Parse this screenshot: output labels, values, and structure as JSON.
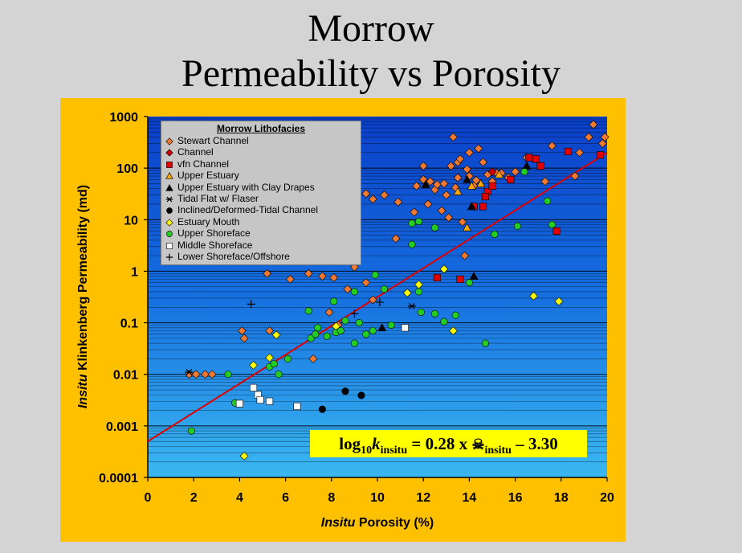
{
  "title_line1": "Morrow",
  "title_line2": "Permeability vs Porosity",
  "equation": {
    "log": "log",
    "log_sub": "10",
    "k": "k",
    "k_sub": "insitu",
    "mid": " = 0.28 x ",
    "symbol": "☠",
    "sym_sub": "insitu",
    "tail": " – 3.30"
  },
  "chart_data": {
    "type": "scatter",
    "xlabel_italic": "Insitu",
    "xlabel_rest": " Porosity (%)",
    "ylabel_italic": "Insitu",
    "ylabel_rest": " Klinkenberg Permeability (md)",
    "xlim": [
      0,
      20
    ],
    "ylim": [
      0.0001,
      1000
    ],
    "y_scale": "log",
    "x_ticks": [
      "0",
      "2",
      "4",
      "6",
      "8",
      "10",
      "12",
      "14",
      "16",
      "18",
      "20"
    ],
    "y_ticks": [
      "0.0001",
      "0.001",
      "0.01",
      "0.1",
      "1",
      "10",
      "100",
      "1000"
    ],
    "legend_title": "Morrow Lithofacies",
    "legend_position": "top-left",
    "trendline": {
      "slope": 0.28,
      "intercept": -3.3,
      "color": "#e00000"
    },
    "series": [
      {
        "name": "Stewart Channel",
        "marker": "diamond",
        "color": "#f07830",
        "points": [
          [
            1.8,
            0.01
          ],
          [
            2.1,
            0.01
          ],
          [
            2.5,
            0.01
          ],
          [
            2.8,
            0.01
          ],
          [
            4.1,
            0.07
          ],
          [
            4.2,
            0.05
          ],
          [
            5.3,
            0.07
          ],
          [
            5.2,
            0.9
          ],
          [
            6.2,
            0.7
          ],
          [
            7.0,
            0.9
          ],
          [
            7.2,
            0.02
          ],
          [
            7.6,
            0.8
          ],
          [
            7.9,
            0.16
          ],
          [
            8.1,
            0.75
          ],
          [
            8.3,
            0.09
          ],
          [
            8.7,
            0.45
          ],
          [
            9.0,
            1.2
          ],
          [
            9.5,
            0.6
          ],
          [
            9.8,
            0.28
          ],
          [
            9.5,
            32
          ],
          [
            9.8,
            25
          ],
          [
            10.3,
            30
          ],
          [
            10.8,
            4.3
          ],
          [
            10.9,
            22
          ],
          [
            11.6,
            14
          ],
          [
            11.7,
            45
          ],
          [
            12.0,
            60
          ],
          [
            12.0,
            110
          ],
          [
            12.2,
            20
          ],
          [
            12.3,
            55
          ],
          [
            12.5,
            38
          ],
          [
            12.6,
            48
          ],
          [
            12.8,
            15
          ],
          [
            12.9,
            50
          ],
          [
            13.0,
            30
          ],
          [
            13.1,
            11
          ],
          [
            13.2,
            110
          ],
          [
            13.3,
            400
          ],
          [
            13.4,
            42
          ],
          [
            13.5,
            65
          ],
          [
            13.5,
            130
          ],
          [
            13.6,
            150
          ],
          [
            13.7,
            9
          ],
          [
            13.8,
            2
          ],
          [
            13.9,
            95
          ],
          [
            14.0,
            200
          ],
          [
            14.0,
            70
          ],
          [
            14.2,
            45
          ],
          [
            14.3,
            58
          ],
          [
            14.4,
            240
          ],
          [
            14.6,
            130
          ],
          [
            14.8,
            75
          ],
          [
            15.0,
            55
          ],
          [
            15.2,
            80
          ],
          [
            15.4,
            80
          ],
          [
            15.7,
            65
          ],
          [
            16.0,
            85
          ],
          [
            16.5,
            160
          ],
          [
            17.3,
            55
          ],
          [
            17.6,
            270
          ],
          [
            18.6,
            70
          ],
          [
            18.8,
            200
          ],
          [
            19.2,
            400
          ],
          [
            19.4,
            700
          ],
          [
            19.8,
            300
          ],
          [
            19.9,
            400
          ]
        ]
      },
      {
        "name": "Channel",
        "marker": "diamond",
        "color": "#cc0000",
        "points": [
          [
            15.0,
            85
          ]
        ]
      },
      {
        "name": "vfn Channel",
        "marker": "square",
        "color": "#e00000",
        "points": [
          [
            12.6,
            0.75
          ],
          [
            13.6,
            0.7
          ],
          [
            14.2,
            18
          ],
          [
            14.6,
            18
          ],
          [
            14.8,
            35
          ],
          [
            14.7,
            28
          ],
          [
            15.0,
            45
          ],
          [
            15.8,
            60
          ],
          [
            16.6,
            160
          ],
          [
            16.9,
            150
          ],
          [
            17.1,
            110
          ],
          [
            17.8,
            6
          ],
          [
            18.3,
            210
          ],
          [
            19.7,
            180
          ]
        ]
      },
      {
        "name": "Upper Estuary",
        "marker": "triangle",
        "color": "#ffa500",
        "points": [
          [
            13.5,
            35
          ],
          [
            13.9,
            7
          ],
          [
            14.1,
            45
          ],
          [
            14.5,
            50
          ],
          [
            15.3,
            75
          ]
        ]
      },
      {
        "name": "Upper Estuary with Clay Drapes",
        "marker": "triangle",
        "color": "#000000",
        "points": [
          [
            10.2,
            0.08
          ],
          [
            12.1,
            48
          ],
          [
            13.9,
            60
          ],
          [
            14.1,
            18
          ],
          [
            14.2,
            0.8
          ],
          [
            16.5,
            110
          ]
        ]
      },
      {
        "name": "Tidal Flat w/ Flaser",
        "marker": "asterisk",
        "color": "#000000",
        "points": [
          [
            1.8,
            0.011
          ],
          [
            11.5,
            0.21
          ]
        ]
      },
      {
        "name": "Inclined/Deformed-Tidal Channel",
        "marker": "circle",
        "color": "#000000",
        "points": [
          [
            7.6,
            0.0021
          ],
          [
            8.6,
            0.0047
          ],
          [
            9.3,
            0.0039
          ]
        ]
      },
      {
        "name": "Estuary Mouth",
        "marker": "diamond",
        "color": "#ffff00",
        "points": [
          [
            4.2,
            0.00026
          ],
          [
            4.6,
            0.015
          ],
          [
            5.3,
            0.021
          ],
          [
            5.6,
            0.058
          ],
          [
            8.2,
            0.085
          ],
          [
            11.3,
            0.38
          ],
          [
            11.8,
            0.55
          ],
          [
            12.9,
            1.1
          ],
          [
            13.3,
            0.07
          ],
          [
            16.8,
            0.33
          ],
          [
            17.9,
            0.26
          ]
        ]
      },
      {
        "name": "Upper Shoreface",
        "marker": "circle",
        "color": "#22cc22",
        "points": [
          [
            1.9,
            0.0008
          ],
          [
            3.5,
            0.01
          ],
          [
            3.8,
            0.0028
          ],
          [
            5.3,
            0.014
          ],
          [
            5.5,
            0.016
          ],
          [
            5.7,
            0.01
          ],
          [
            6.1,
            0.02
          ],
          [
            7.0,
            0.17
          ],
          [
            7.1,
            0.05
          ],
          [
            7.3,
            0.06
          ],
          [
            7.4,
            0.08
          ],
          [
            7.8,
            0.055
          ],
          [
            8.1,
            0.26
          ],
          [
            8.2,
            0.065
          ],
          [
            8.4,
            0.07
          ],
          [
            8.6,
            0.11
          ],
          [
            9.0,
            0.04
          ],
          [
            9.0,
            0.4
          ],
          [
            9.2,
            0.1
          ],
          [
            9.5,
            0.06
          ],
          [
            9.8,
            0.07
          ],
          [
            9.9,
            0.85
          ],
          [
            10.3,
            0.45
          ],
          [
            10.6,
            0.09
          ],
          [
            11.5,
            8.5
          ],
          [
            11.5,
            3.3
          ],
          [
            11.8,
            9.2
          ],
          [
            11.8,
            0.4
          ],
          [
            11.9,
            0.16
          ],
          [
            12.5,
            7
          ],
          [
            12.5,
            0.15
          ],
          [
            12.9,
            0.105
          ],
          [
            13.4,
            0.14
          ],
          [
            14.0,
            0.6
          ],
          [
            14.7,
            0.04
          ],
          [
            15.1,
            5.2
          ],
          [
            16.1,
            7.5
          ],
          [
            16.4,
            85
          ],
          [
            17.4,
            23
          ],
          [
            17.6,
            8
          ]
        ]
      },
      {
        "name": "Middle Shoreface",
        "marker": "square",
        "color": "#ffffff",
        "points": [
          [
            4.0,
            0.0027
          ],
          [
            4.6,
            0.0055
          ],
          [
            4.8,
            0.004
          ],
          [
            4.9,
            0.0032
          ],
          [
            5.3,
            0.003
          ],
          [
            6.5,
            0.0024
          ],
          [
            11.2,
            0.08
          ]
        ]
      },
      {
        "name": "Lower Shoreface/Offshore",
        "marker": "plus",
        "color": "#000000",
        "points": [
          [
            4.5,
            0.23
          ],
          [
            9.0,
            0.15
          ],
          [
            10.1,
            0.25
          ]
        ]
      }
    ]
  }
}
